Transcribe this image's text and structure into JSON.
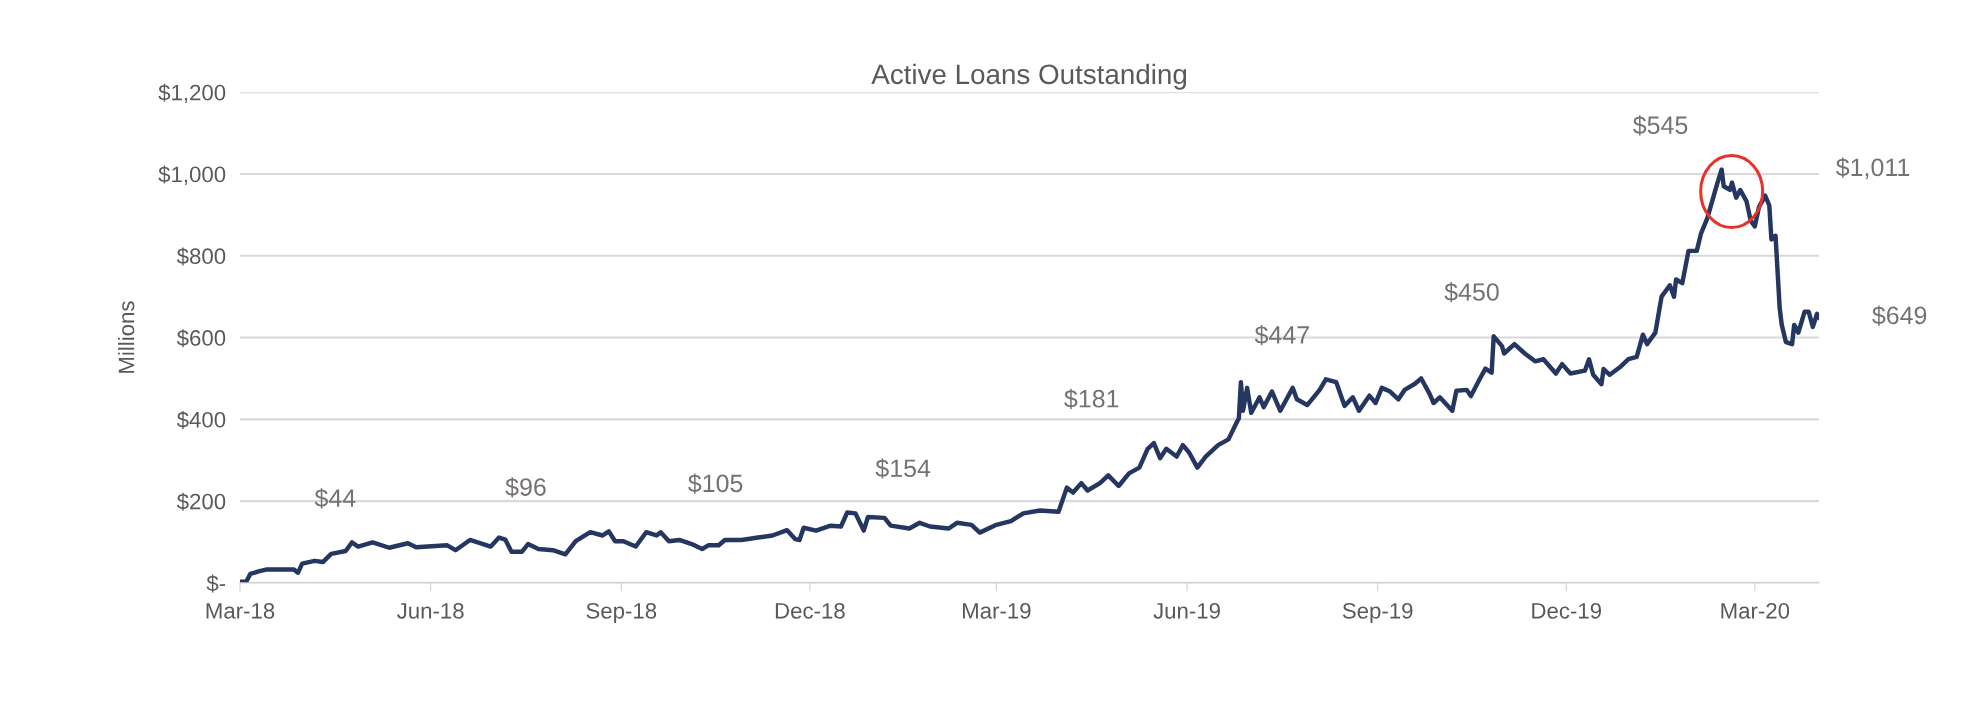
{
  "chart_data": {
    "type": "line",
    "title": "Active Loans Outstanding",
    "ylabel": "Millions",
    "x": [
      "2018-03-01",
      "2018-03-04",
      "2018-03-06",
      "2018-03-10",
      "2018-03-14",
      "2018-03-27",
      "2018-03-29",
      "2018-03-31",
      "2018-04-06",
      "2018-04-10",
      "2018-04-14",
      "2018-04-21",
      "2018-04-24",
      "2018-04-27",
      "2018-05-04",
      "2018-05-12",
      "2018-05-21",
      "2018-05-25",
      "2018-06-09",
      "2018-06-13",
      "2018-06-20",
      "2018-06-30",
      "2018-07-04",
      "2018-07-07",
      "2018-07-10",
      "2018-07-15",
      "2018-07-18",
      "2018-07-23",
      "2018-07-30",
      "2018-08-05",
      "2018-08-10",
      "2018-08-17",
      "2018-08-23",
      "2018-08-26",
      "2018-08-29",
      "2018-09-02",
      "2018-09-08",
      "2018-09-13",
      "2018-09-18",
      "2018-09-20",
      "2018-09-24",
      "2018-09-29",
      "2018-10-05",
      "2018-10-10",
      "2018-10-13",
      "2018-10-18",
      "2018-10-21",
      "2018-10-29",
      "2018-11-06",
      "2018-11-13",
      "2018-11-20",
      "2018-11-24",
      "2018-11-26",
      "2018-11-28",
      "2018-12-04",
      "2018-12-11",
      "2018-12-16",
      "2018-12-19",
      "2018-12-23",
      "2018-12-27",
      "2018-12-29",
      "2019-01-06",
      "2019-01-09",
      "2019-01-18",
      "2019-01-23",
      "2019-01-28",
      "2019-02-06",
      "2019-02-10",
      "2019-02-17",
      "2019-02-21",
      "2019-03-01",
      "2019-03-08",
      "2019-03-14",
      "2019-03-22",
      "2019-03-31",
      "2019-04-04",
      "2019-04-07",
      "2019-04-11",
      "2019-04-14",
      "2019-04-20",
      "2019-04-24",
      "2019-04-29",
      "2019-05-04",
      "2019-05-09",
      "2019-05-13",
      "2019-05-16",
      "2019-05-19",
      "2019-05-22",
      "2019-05-27",
      "2019-05-30",
      "2019-06-02",
      "2019-06-06",
      "2019-06-10",
      "2019-06-16",
      "2019-06-21",
      "2019-06-25",
      "2019-06-26",
      "2019-06-27",
      "2019-06-28",
      "2019-06-30",
      "2019-07-02",
      "2019-07-06",
      "2019-07-08",
      "2019-07-12",
      "2019-07-16",
      "2019-07-22",
      "2019-07-24",
      "2019-07-29",
      "2019-08-04",
      "2019-08-07",
      "2019-08-12",
      "2019-08-16",
      "2019-08-20",
      "2019-08-23",
      "2019-08-28",
      "2019-08-31",
      "2019-09-03",
      "2019-09-07",
      "2019-09-11",
      "2019-09-14",
      "2019-09-19",
      "2019-09-22",
      "2019-09-26",
      "2019-09-28",
      "2019-10-01",
      "2019-10-07",
      "2019-10-09",
      "2019-10-14",
      "2019-10-16",
      "2019-10-20",
      "2019-10-23",
      "2019-10-26",
      "2019-10-27",
      "2019-10-31",
      "2019-11-01",
      "2019-11-06",
      "2019-11-11",
      "2019-11-16",
      "2019-11-20",
      "2019-11-26",
      "2019-11-29",
      "2019-12-03",
      "2019-12-10",
      "2019-12-12",
      "2019-12-14",
      "2019-12-18",
      "2019-12-19",
      "2019-12-22",
      "2019-12-27",
      "2019-12-31",
      "2020-01-04",
      "2020-01-07",
      "2020-01-09",
      "2020-01-13",
      "2020-01-16",
      "2020-01-20",
      "2020-01-22",
      "2020-01-23",
      "2020-01-26",
      "2020-01-29",
      "2020-02-02",
      "2020-02-04",
      "2020-02-07",
      "2020-02-12",
      "2020-02-14",
      "2020-02-15",
      "2020-02-18",
      "2020-02-19",
      "2020-02-21",
      "2020-02-23",
      "2020-02-26",
      "2020-02-28",
      "2020-03-01",
      "2020-03-03",
      "2020-03-06",
      "2020-03-08",
      "2020-03-09",
      "2020-03-11",
      "2020-03-13",
      "2020-03-14",
      "2020-03-16",
      "2020-03-19",
      "2020-03-20",
      "2020-03-22",
      "2020-03-25",
      "2020-03-27",
      "2020-03-29",
      "2020-03-31",
      "2020-04-01"
    ],
    "series": [
      {
        "color": "#253761",
        "values": [
          3,
          3,
          22,
          28,
          33,
          33,
          25,
          47,
          54,
          51,
          71,
          78,
          99,
          89,
          99,
          86,
          97,
          87,
          92,
          80,
          105,
          89,
          111,
          106,
          76,
          76,
          95,
          83,
          80,
          70,
          102,
          124,
          116,
          126,
          102,
          102,
          89,
          124,
          116,
          124,
          102,
          105,
          95,
          83,
          92,
          92,
          105,
          105,
          111,
          116,
          129,
          107,
          105,
          135,
          128,
          140,
          138,
          172,
          170,
          128,
          161,
          159,
          140,
          133,
          147,
          138,
          133,
          147,
          142,
          123,
          142,
          151,
          170,
          177,
          174,
          233,
          221,
          244,
          226,
          244,
          263,
          237,
          268,
          282,
          328,
          342,
          305,
          328,
          309,
          337,
          319,
          282,
          309,
          337,
          351,
          393,
          402,
          491,
          421,
          477,
          416,
          454,
          430,
          468,
          421,
          477,
          449,
          435,
          472,
          498,
          491,
          433,
          454,
          421,
          458,
          440,
          477,
          468,
          449,
          472,
          487,
          500,
          463,
          440,
          454,
          421,
          470,
          472,
          457,
          496,
          524,
          514,
          603,
          579,
          561,
          584,
          561,
          542,
          547,
          512,
          535,
          512,
          519,
          547,
          509,
          486,
          523,
          509,
          528,
          547,
          553,
          607,
          584,
          612,
          700,
          728,
          700,
          742,
          733,
          812,
          812,
          854,
          891,
          979,
          1011,
          970,
          961,
          979,
          942,
          961,
          933,
          886,
          872,
          919,
          947,
          923,
          840,
          849,
          672,
          631,
          589,
          584,
          631,
          612,
          663,
          663,
          626,
          658,
          649
        ]
      }
    ],
    "xlim": [
      "2018-03-01",
      "2020-04-01"
    ],
    "xticks": [
      {
        "value": "2018-03-01",
        "label": "Mar-18"
      },
      {
        "value": "2018-06-01",
        "label": "Jun-18"
      },
      {
        "value": "2018-09-01",
        "label": "Sep-18"
      },
      {
        "value": "2018-12-01",
        "label": "Dec-18"
      },
      {
        "value": "2019-03-01",
        "label": "Mar-19"
      },
      {
        "value": "2019-06-01",
        "label": "Jun-19"
      },
      {
        "value": "2019-09-01",
        "label": "Sep-19"
      },
      {
        "value": "2019-12-01",
        "label": "Dec-19"
      },
      {
        "value": "2020-03-01",
        "label": "Mar-20"
      }
    ],
    "ylim": [
      0,
      1200
    ],
    "yticks": [
      {
        "value": 0,
        "label": "$-"
      },
      {
        "value": 200,
        "label": "$200"
      },
      {
        "value": 400,
        "label": "$400"
      },
      {
        "value": 600,
        "label": "$600"
      },
      {
        "value": 800,
        "label": "$800"
      },
      {
        "value": 1000,
        "label": "$1,000"
      },
      {
        "value": 1200,
        "label": "$1,200"
      }
    ],
    "grid": "y",
    "legend": false,
    "annotations": [
      "$44",
      "$96",
      "$105",
      "$154",
      "$181",
      "$447",
      "$450",
      "$545",
      "$1,011",
      "$649"
    ]
  }
}
